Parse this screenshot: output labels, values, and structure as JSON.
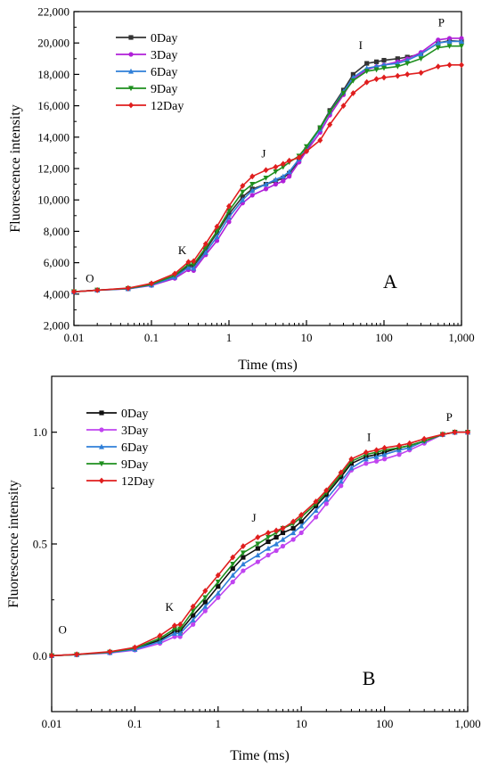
{
  "chart_data": [
    {
      "panel": "A",
      "type": "line",
      "xlabel": "Time (ms)",
      "ylabel": "Fluorescence intensity",
      "x_scale": "log",
      "xlim": [
        0.01,
        1000
      ],
      "ylim": [
        2000,
        22000
      ],
      "x_ticks": [
        0.01,
        0.1,
        1,
        10,
        100,
        1000
      ],
      "x_tick_labels": [
        "0.01",
        "0.1",
        "1",
        "10",
        "100",
        "1,000"
      ],
      "y_ticks": [
        2000,
        4000,
        6000,
        8000,
        10000,
        12000,
        14000,
        16000,
        18000,
        20000,
        22000
      ],
      "y_tick_labels": [
        "2,000",
        "4,000",
        "6,000",
        "8,000",
        "10,000",
        "12,000",
        "14,000",
        "16,000",
        "18,000",
        "20,000",
        "22,000"
      ],
      "legend_position": "top-left",
      "annotations": [
        {
          "text": "O",
          "x": 0.016,
          "y": 4750
        },
        {
          "text": "K",
          "x": 0.25,
          "y": 6550
        },
        {
          "text": "J",
          "x": 2.8,
          "y": 12700
        },
        {
          "text": "I",
          "x": 50,
          "y": 19600
        },
        {
          "text": "P",
          "x": 550,
          "y": 21050
        },
        {
          "text": "A",
          "x": 120,
          "y": 4400
        }
      ],
      "series": [
        {
          "name": "0Day",
          "color": "#333333",
          "marker": "square",
          "x": [
            0.01,
            0.02,
            0.05,
            0.1,
            0.2,
            0.3,
            0.35,
            0.5,
            0.7,
            1,
            1.5,
            2,
            3,
            4,
            5,
            6,
            8,
            10,
            15,
            20,
            30,
            40,
            60,
            80,
            100,
            150,
            200,
            300,
            500,
            700,
            1000
          ],
          "y": [
            4150,
            4250,
            4350,
            4600,
            5150,
            5800,
            5800,
            6800,
            7900,
            9100,
            10200,
            10700,
            11000,
            11200,
            11400,
            11700,
            12500,
            13200,
            14600,
            15700,
            17000,
            18000,
            18700,
            18800,
            18900,
            19000,
            19100,
            19300,
            20000,
            20150,
            20100
          ]
        },
        {
          "name": "3Day",
          "color": "#b020d8",
          "marker": "circle",
          "x": [
            0.01,
            0.02,
            0.05,
            0.1,
            0.2,
            0.3,
            0.35,
            0.5,
            0.7,
            1,
            1.5,
            2,
            3,
            4,
            5,
            6,
            8,
            10,
            15,
            20,
            30,
            40,
            60,
            80,
            100,
            150,
            200,
            300,
            500,
            700,
            1000
          ],
          "y": [
            4150,
            4250,
            4330,
            4550,
            5000,
            5550,
            5500,
            6500,
            7400,
            8600,
            9800,
            10300,
            10700,
            11000,
            11200,
            11500,
            12400,
            13100,
            14300,
            15400,
            16700,
            17700,
            18300,
            18500,
            18600,
            18800,
            19000,
            19400,
            20200,
            20300,
            20300
          ]
        },
        {
          "name": "6Day",
          "color": "#2f7fd8",
          "marker": "triangle-up",
          "x": [
            0.01,
            0.02,
            0.05,
            0.1,
            0.2,
            0.3,
            0.35,
            0.5,
            0.7,
            1,
            1.5,
            2,
            3,
            4,
            5,
            6,
            8,
            10,
            15,
            20,
            30,
            40,
            60,
            80,
            100,
            150,
            200,
            300,
            500,
            700,
            1000
          ],
          "y": [
            4150,
            4250,
            4340,
            4580,
            5080,
            5700,
            5650,
            6650,
            7650,
            8900,
            10000,
            10600,
            11000,
            11300,
            11500,
            11800,
            12600,
            13300,
            14500,
            15600,
            16900,
            17800,
            18400,
            18500,
            18600,
            18700,
            18900,
            19300,
            20000,
            20100,
            20100
          ]
        },
        {
          "name": "9Day",
          "color": "#1e8f1e",
          "marker": "triangle-down",
          "x": [
            0.01,
            0.02,
            0.05,
            0.1,
            0.2,
            0.3,
            0.35,
            0.5,
            0.7,
            1,
            1.5,
            2,
            3,
            4,
            5,
            6,
            8,
            10,
            15,
            20,
            30,
            40,
            60,
            80,
            100,
            150,
            200,
            300,
            500,
            700,
            1000
          ],
          "y": [
            4150,
            4250,
            4360,
            4620,
            5200,
            5900,
            5900,
            6950,
            8000,
            9300,
            10500,
            11000,
            11400,
            11800,
            12100,
            12400,
            12800,
            13400,
            14600,
            15600,
            16800,
            17600,
            18200,
            18300,
            18400,
            18500,
            18700,
            19000,
            19700,
            19800,
            19800
          ]
        },
        {
          "name": "12Day",
          "color": "#e01e1e",
          "marker": "diamond",
          "x": [
            0.01,
            0.02,
            0.05,
            0.1,
            0.2,
            0.3,
            0.35,
            0.5,
            0.7,
            1,
            1.5,
            2,
            3,
            4,
            5,
            6,
            8,
            10,
            15,
            20,
            30,
            40,
            60,
            80,
            100,
            150,
            200,
            300,
            500,
            700,
            1000
          ],
          "y": [
            4150,
            4250,
            4380,
            4680,
            5300,
            6050,
            6100,
            7200,
            8300,
            9600,
            10900,
            11500,
            11900,
            12100,
            12300,
            12500,
            12700,
            13100,
            13800,
            14800,
            16000,
            16800,
            17500,
            17700,
            17800,
            17900,
            18000,
            18100,
            18500,
            18600,
            18600
          ]
        }
      ]
    },
    {
      "panel": "B",
      "type": "line",
      "xlabel": "Time (ms)",
      "ylabel": "Fluorescence intensity",
      "x_scale": "log",
      "xlim": [
        0.01,
        1000
      ],
      "ylim": [
        -0.25,
        1.25
      ],
      "x_ticks": [
        0.01,
        0.1,
        1,
        10,
        100,
        1000
      ],
      "x_tick_labels": [
        "0.01",
        "0.1",
        "1",
        "10",
        "100",
        "1,000"
      ],
      "y_ticks": [
        0.0,
        0.5,
        1.0
      ],
      "y_tick_labels": [
        "0.0",
        "0.5",
        "1.0"
      ],
      "legend_position": "top-left",
      "annotations": [
        {
          "text": "O",
          "x": 0.0135,
          "y": 0.1
        },
        {
          "text": "K",
          "x": 0.26,
          "y": 0.2
        },
        {
          "text": "J",
          "x": 2.7,
          "y": 0.6
        },
        {
          "text": "I",
          "x": 65,
          "y": 0.96
        },
        {
          "text": "P",
          "x": 600,
          "y": 1.05
        },
        {
          "text": "B",
          "x": 65,
          "y": -0.13
        }
      ],
      "series": [
        {
          "name": "0Day",
          "color": "#111111",
          "marker": "square",
          "x": [
            0.01,
            0.02,
            0.05,
            0.1,
            0.2,
            0.3,
            0.35,
            0.5,
            0.7,
            1,
            1.5,
            2,
            3,
            4,
            5,
            6,
            8,
            10,
            15,
            20,
            30,
            40,
            60,
            80,
            100,
            150,
            200,
            300,
            500,
            700,
            1000
          ],
          "y": [
            0.0,
            0.005,
            0.015,
            0.03,
            0.07,
            0.11,
            0.11,
            0.18,
            0.24,
            0.31,
            0.39,
            0.44,
            0.48,
            0.51,
            0.53,
            0.55,
            0.57,
            0.6,
            0.67,
            0.72,
            0.8,
            0.86,
            0.89,
            0.9,
            0.91,
            0.93,
            0.94,
            0.96,
            0.99,
            1.0,
            1.0
          ]
        },
        {
          "name": "3Day",
          "color": "#c044f0",
          "marker": "circle",
          "x": [
            0.01,
            0.02,
            0.05,
            0.1,
            0.2,
            0.3,
            0.35,
            0.5,
            0.7,
            1,
            1.5,
            2,
            3,
            4,
            5,
            6,
            8,
            10,
            15,
            20,
            30,
            40,
            60,
            80,
            100,
            150,
            200,
            300,
            500,
            700,
            1000
          ],
          "y": [
            0.0,
            0.005,
            0.012,
            0.025,
            0.055,
            0.085,
            0.085,
            0.14,
            0.2,
            0.26,
            0.33,
            0.38,
            0.42,
            0.45,
            0.47,
            0.49,
            0.52,
            0.55,
            0.62,
            0.68,
            0.76,
            0.83,
            0.86,
            0.87,
            0.88,
            0.9,
            0.92,
            0.95,
            0.99,
            1.0,
            1.0
          ]
        },
        {
          "name": "6Day",
          "color": "#2f7fd8",
          "marker": "triangle-up",
          "x": [
            0.01,
            0.02,
            0.05,
            0.1,
            0.2,
            0.3,
            0.35,
            0.5,
            0.7,
            1,
            1.5,
            2,
            3,
            4,
            5,
            6,
            8,
            10,
            15,
            20,
            30,
            40,
            60,
            80,
            100,
            150,
            200,
            300,
            500,
            700,
            1000
          ],
          "y": [
            0.0,
            0.005,
            0.014,
            0.028,
            0.063,
            0.1,
            0.1,
            0.16,
            0.22,
            0.28,
            0.36,
            0.41,
            0.45,
            0.48,
            0.5,
            0.52,
            0.55,
            0.58,
            0.65,
            0.7,
            0.78,
            0.84,
            0.88,
            0.89,
            0.9,
            0.92,
            0.93,
            0.96,
            0.99,
            1.0,
            1.0
          ]
        },
        {
          "name": "9Day",
          "color": "#1e8f1e",
          "marker": "triangle-down",
          "x": [
            0.01,
            0.02,
            0.05,
            0.1,
            0.2,
            0.3,
            0.35,
            0.5,
            0.7,
            1,
            1.5,
            2,
            3,
            4,
            5,
            6,
            8,
            10,
            15,
            20,
            30,
            40,
            60,
            80,
            100,
            150,
            200,
            300,
            500,
            700,
            1000
          ],
          "y": [
            0.0,
            0.005,
            0.016,
            0.033,
            0.078,
            0.12,
            0.12,
            0.2,
            0.26,
            0.33,
            0.41,
            0.46,
            0.5,
            0.53,
            0.55,
            0.57,
            0.59,
            0.62,
            0.68,
            0.73,
            0.81,
            0.87,
            0.9,
            0.91,
            0.92,
            0.93,
            0.94,
            0.96,
            0.99,
            1.0,
            1.0
          ]
        },
        {
          "name": "12Day",
          "color": "#e01e1e",
          "marker": "diamond",
          "x": [
            0.01,
            0.02,
            0.05,
            0.1,
            0.2,
            0.3,
            0.35,
            0.5,
            0.7,
            1,
            1.5,
            2,
            3,
            4,
            5,
            6,
            8,
            10,
            15,
            20,
            30,
            40,
            60,
            80,
            100,
            150,
            200,
            300,
            500,
            700,
            1000
          ],
          "y": [
            0.0,
            0.006,
            0.018,
            0.037,
            0.09,
            0.135,
            0.14,
            0.22,
            0.29,
            0.36,
            0.44,
            0.49,
            0.53,
            0.55,
            0.56,
            0.57,
            0.6,
            0.63,
            0.69,
            0.74,
            0.82,
            0.88,
            0.91,
            0.92,
            0.93,
            0.94,
            0.95,
            0.97,
            0.99,
            1.0,
            1.0
          ]
        }
      ]
    }
  ]
}
